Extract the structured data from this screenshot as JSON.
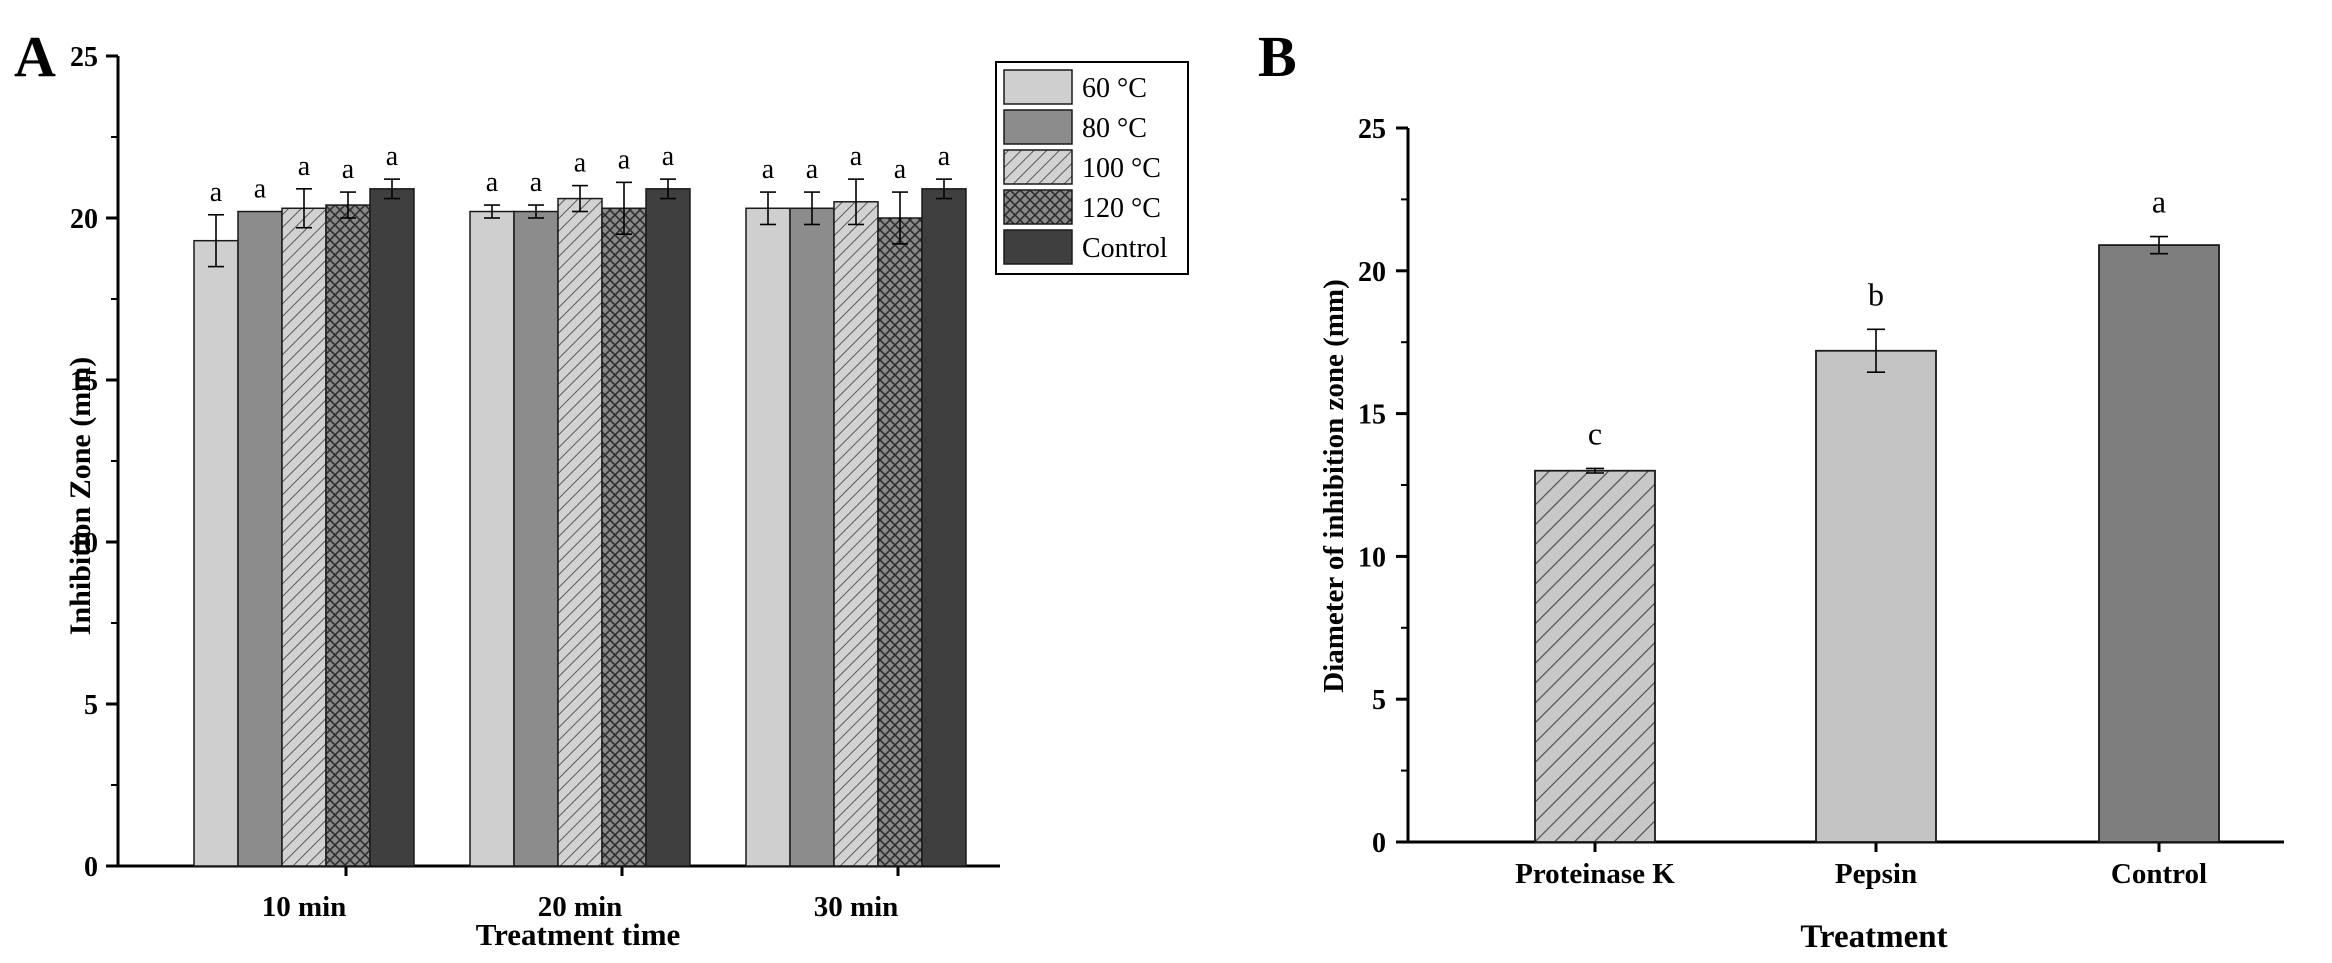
{
  "colors": {
    "c60": "#cfcfcf",
    "c80": "#8c8c8c",
    "c100": "#cfcfcf",
    "c120": "#8c8c8c",
    "control": "#3f3f3f",
    "proteinase": "#c4c4c4",
    "pepsin": "#c4c4c4",
    "controlB": "#7e7e7e",
    "stroke": "#1a1a1a"
  },
  "chart_data": [
    {
      "panel": "A",
      "type": "bar",
      "ylabel": "Inhibition Zone (mm)",
      "xlabel": "Treatment time",
      "ylim": [
        0,
        25
      ],
      "yticks": [
        0,
        5,
        10,
        15,
        20,
        25
      ],
      "categories": [
        "10 min",
        "20 min",
        "30 min"
      ],
      "legend_position": "top-right",
      "series": [
        {
          "name": "60 °C",
          "key": "c60",
          "pattern": "solid",
          "values": [
            19.3,
            20.2,
            20.3
          ],
          "errors": [
            0.8,
            0.2,
            0.5
          ],
          "labels": [
            "a",
            "a",
            "a"
          ]
        },
        {
          "name": "80 °C",
          "key": "c80",
          "pattern": "solid",
          "values": [
            20.2,
            20.2,
            20.3
          ],
          "errors": [
            0.0,
            0.2,
            0.5
          ],
          "labels": [
            "a",
            "a",
            "a"
          ]
        },
        {
          "name": "100 °C",
          "key": "c100",
          "pattern": "diag",
          "values": [
            20.3,
            20.6,
            20.5
          ],
          "errors": [
            0.6,
            0.4,
            0.7
          ],
          "labels": [
            "a",
            "a",
            "a"
          ]
        },
        {
          "name": "120 °C",
          "key": "c120",
          "pattern": "cross",
          "values": [
            20.4,
            20.3,
            20.0
          ],
          "errors": [
            0.4,
            0.8,
            0.8
          ],
          "labels": [
            "a",
            "a",
            "a"
          ]
        },
        {
          "name": "Control",
          "key": "control",
          "pattern": "solid",
          "values": [
            20.9,
            20.9,
            20.9
          ],
          "errors": [
            0.3,
            0.3,
            0.3
          ],
          "labels": [
            "a",
            "a",
            "a"
          ]
        }
      ]
    },
    {
      "panel": "B",
      "type": "bar",
      "ylabel": "Diameter of inhibition zone (mm)",
      "xlabel": "Treatment",
      "ylim": [
        0,
        25
      ],
      "yticks": [
        0,
        5,
        10,
        15,
        20,
        25
      ],
      "categories": [
        "Proteinase K",
        "Pepsin",
        "Control"
      ],
      "values": [
        13.0,
        17.2,
        20.9
      ],
      "errors": [
        0.08,
        0.75,
        0.3
      ],
      "labels": [
        "c",
        "b",
        "a"
      ],
      "keys": [
        "proteinase",
        "pepsin",
        "controlB"
      ],
      "patterns": [
        "diag",
        "solid",
        "solid"
      ]
    }
  ]
}
